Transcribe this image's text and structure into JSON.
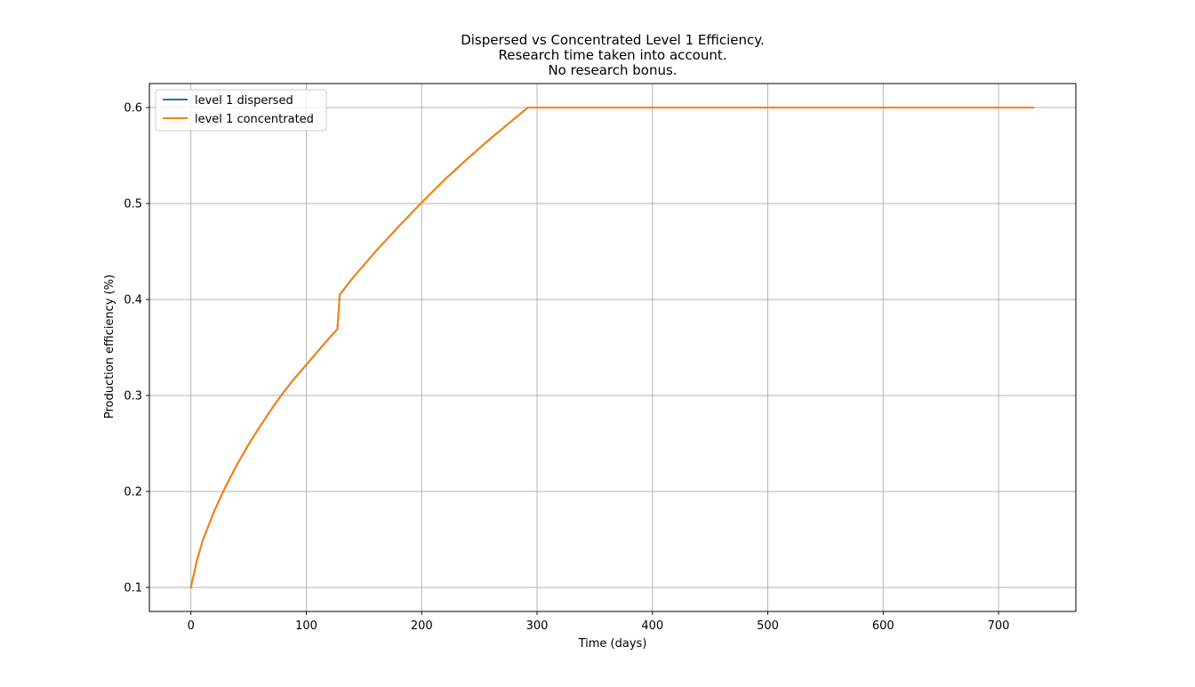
{
  "chart_data": {
    "type": "line",
    "title_lines": [
      "Dispersed vs Concentrated Level 1 Efficiency.",
      "Research time taken into account.",
      "No research bonus."
    ],
    "xlabel": "Time (days)",
    "ylabel": "Production efficiency (%)",
    "xlim": [
      -36,
      767
    ],
    "ylim": [
      0.075,
      0.625
    ],
    "xticks": [
      0,
      100,
      200,
      300,
      400,
      500,
      600,
      700
    ],
    "yticks": [
      0.1,
      0.2,
      0.3,
      0.4,
      0.5,
      0.6
    ],
    "xtick_labels": [
      "0",
      "100",
      "200",
      "300",
      "400",
      "500",
      "600",
      "700"
    ],
    "ytick_labels": [
      "0.1",
      "0.2",
      "0.3",
      "0.4",
      "0.5",
      "0.6"
    ],
    "grid": true,
    "legend_position": "top-left",
    "series": [
      {
        "name": "level 1 dispersed",
        "color": "#1f77b4",
        "x": [
          0,
          5,
          10,
          20,
          30,
          40,
          50,
          60,
          70,
          80,
          90,
          100,
          110,
          120,
          127,
          129,
          140,
          160,
          180,
          200,
          220,
          240,
          260,
          280,
          292,
          400,
          500,
          600,
          700,
          730
        ],
        "y": [
          0.1,
          0.127,
          0.148,
          0.179,
          0.205,
          0.228,
          0.249,
          0.268,
          0.286,
          0.303,
          0.318,
          0.332,
          0.346,
          0.36,
          0.369,
          0.405,
          0.422,
          0.45,
          0.476,
          0.501,
          0.525,
          0.547,
          0.568,
          0.588,
          0.6,
          0.6,
          0.6,
          0.6,
          0.6,
          0.6
        ]
      },
      {
        "name": "level 1 concentrated",
        "color": "#ff7f0e",
        "x": [
          0,
          5,
          10,
          20,
          30,
          40,
          50,
          60,
          70,
          80,
          90,
          100,
          110,
          120,
          127,
          129,
          140,
          160,
          180,
          200,
          220,
          240,
          260,
          280,
          292,
          400,
          500,
          600,
          700,
          730
        ],
        "y": [
          0.1,
          0.127,
          0.148,
          0.179,
          0.205,
          0.228,
          0.249,
          0.268,
          0.286,
          0.303,
          0.318,
          0.332,
          0.346,
          0.36,
          0.369,
          0.405,
          0.422,
          0.45,
          0.476,
          0.501,
          0.525,
          0.547,
          0.568,
          0.588,
          0.6,
          0.6,
          0.6,
          0.6,
          0.6,
          0.6
        ]
      }
    ]
  }
}
